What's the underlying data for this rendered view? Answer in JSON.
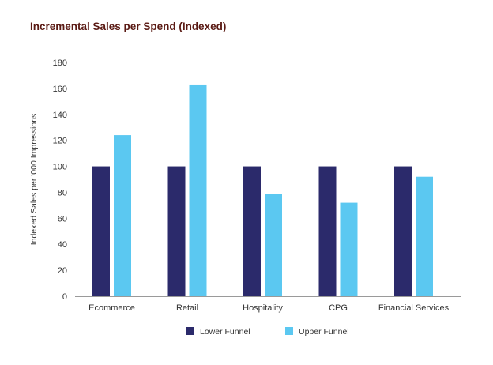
{
  "chart_data": {
    "type": "bar",
    "title": "Incremental Sales per Spend (Indexed)",
    "xlabel": "",
    "ylabel": "Indexed Sales per '000 Impressions",
    "categories": [
      "Ecommerce",
      "Retail",
      "Hospitality",
      "CPG",
      "Financial Services"
    ],
    "series": [
      {
        "name": "Lower Funnel",
        "color": "#2b2a6b",
        "values": [
          100,
          100,
          100,
          100,
          100
        ]
      },
      {
        "name": "Upper Funnel",
        "color": "#5bc8f1",
        "values": [
          124,
          163,
          79,
          72,
          92
        ]
      }
    ],
    "ylim": [
      0,
      180
    ],
    "yticks": [
      "0",
      "20",
      "40",
      "60",
      "80",
      "100",
      "120",
      "140",
      "160",
      "180"
    ],
    "grid": false,
    "legend_position": "bottom"
  }
}
